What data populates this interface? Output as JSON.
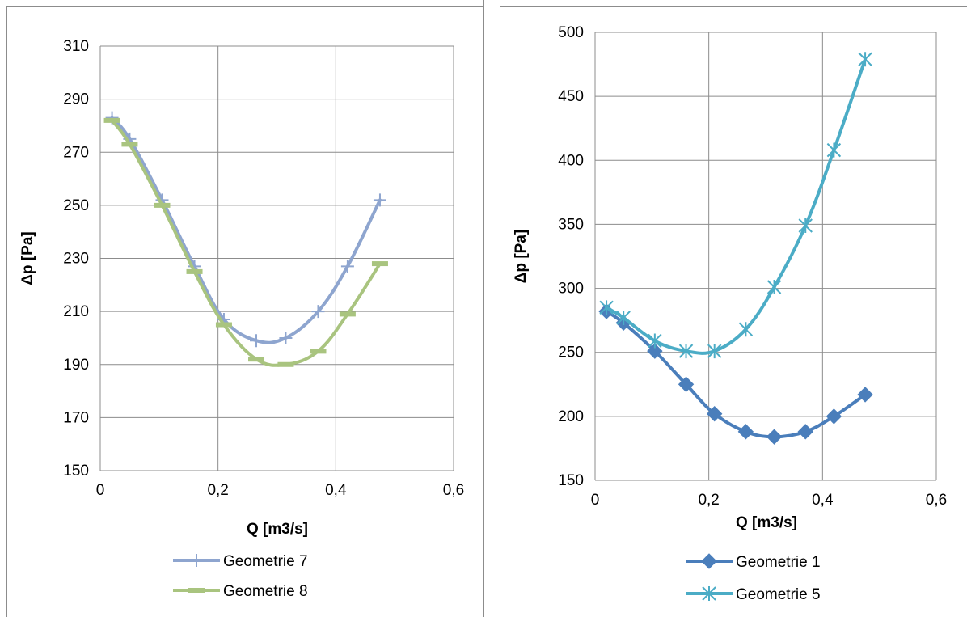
{
  "chart_data": [
    {
      "type": "line",
      "title": "",
      "xlabel": "Q [m3/s]",
      "ylabel": "Δp [Pa]",
      "xlim": [
        0,
        0.6
      ],
      "ylim": [
        150,
        310
      ],
      "xticks": [
        "0",
        "0,2",
        "0,4",
        "0,6"
      ],
      "yticks": [
        "150",
        "170",
        "190",
        "210",
        "230",
        "250",
        "270",
        "290",
        "310"
      ],
      "grid": true,
      "legend_position": "bottom",
      "series": [
        {
          "name": "Geometrie 7",
          "color": "#8ea5cf",
          "marker": "plus",
          "x": [
            0.02,
            0.05,
            0.105,
            0.16,
            0.21,
            0.265,
            0.315,
            0.37,
            0.42,
            0.475
          ],
          "y": [
            283,
            275,
            252,
            227,
            207,
            199,
            200,
            210,
            227,
            252
          ]
        },
        {
          "name": "Geometrie 8",
          "color": "#a9c47f",
          "marker": "dash",
          "x": [
            0.02,
            0.05,
            0.105,
            0.16,
            0.21,
            0.265,
            0.315,
            0.37,
            0.42,
            0.475
          ],
          "y": [
            282,
            273,
            250,
            225,
            205,
            192,
            190,
            195,
            209,
            228
          ]
        }
      ]
    },
    {
      "type": "line",
      "title": "",
      "xlabel": "Q [m3/s]",
      "ylabel": "Δp [Pa]",
      "xlim": [
        0,
        0.6
      ],
      "ylim": [
        150,
        500
      ],
      "xticks": [
        "0",
        "0,2",
        "0,4",
        "0,6"
      ],
      "yticks": [
        "150",
        "200",
        "250",
        "300",
        "350",
        "400",
        "450",
        "500"
      ],
      "grid": true,
      "legend_position": "bottom",
      "series": [
        {
          "name": "Geometrie 1",
          "color": "#4a7ebb",
          "marker": "diamond",
          "x": [
            0.02,
            0.05,
            0.105,
            0.16,
            0.21,
            0.265,
            0.315,
            0.37,
            0.42,
            0.475
          ],
          "y": [
            282,
            273,
            251,
            225,
            202,
            188,
            184,
            188,
            200,
            217
          ]
        },
        {
          "name": "Geometrie 5",
          "color": "#4bacc6",
          "marker": "star",
          "x": [
            0.02,
            0.05,
            0.105,
            0.16,
            0.21,
            0.265,
            0.315,
            0.37,
            0.42,
            0.475
          ],
          "y": [
            285,
            277,
            259,
            251,
            251,
            268,
            301,
            349,
            408,
            479
          ]
        }
      ]
    }
  ]
}
